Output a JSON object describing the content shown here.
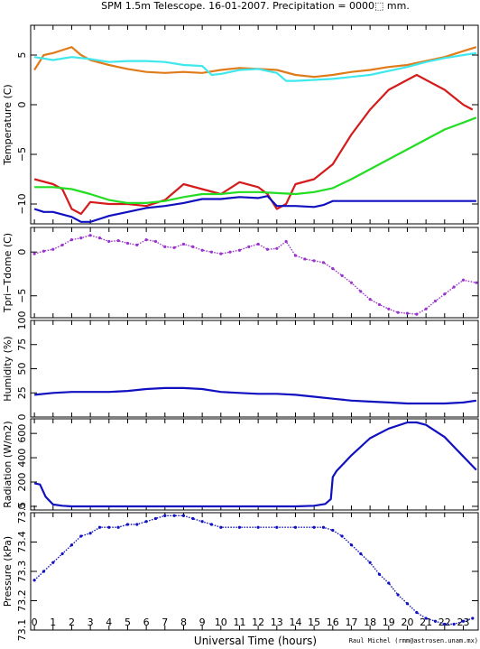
{
  "figure": {
    "title": "SPM 1.5m Telescope. 16-01-2007. Precipitation = 0000⬚ mm.",
    "xlabel": "Universal Time (hours)",
    "credit": "Raul Michel  (rmm@astrosen.unam.mx)"
  },
  "colors": {
    "orange": "#e07b1a",
    "cyan": "#3fe8ec",
    "red": "#d41c1c",
    "green": "#22dd22",
    "blue": "#1010c0",
    "purple": "#9933cc"
  },
  "chart_data": [
    {
      "type": "line",
      "panel": "temperature",
      "ylabel": "Temperature (C)",
      "ylim": [
        -12,
        8
      ],
      "xlim": [
        -0.2,
        23.8
      ],
      "x_ticks": [
        "0",
        "1",
        "2",
        "3",
        "4",
        "5",
        "6",
        "7",
        "8",
        "9",
        "10",
        "11",
        "12",
        "13",
        "14",
        "15",
        "16",
        "17",
        "18",
        "19",
        "20",
        "21",
        "22",
        "23"
      ],
      "y_ticks": [
        {
          "v": 5,
          "label": "5"
        },
        {
          "v": 0,
          "label": "0"
        },
        {
          "v": -5,
          "label": "−5"
        },
        {
          "v": -10,
          "label": "−10"
        }
      ],
      "series": [
        {
          "color": "orange",
          "x": [
            0,
            0.5,
            1,
            1.5,
            2,
            2.5,
            3,
            4,
            5,
            6,
            7,
            8,
            9,
            10,
            11,
            12,
            13,
            14,
            15,
            16,
            17,
            18,
            19,
            20,
            21,
            22,
            23,
            23.7
          ],
          "y": [
            3.5,
            5,
            5.2,
            5.5,
            5.8,
            5,
            4.5,
            4,
            3.6,
            3.3,
            3.2,
            3.3,
            3.2,
            3.5,
            3.7,
            3.6,
            3.5,
            3,
            2.8,
            3,
            3.3,
            3.5,
            3.8,
            4,
            4.4,
            4.8,
            5.4,
            5.8
          ]
        },
        {
          "color": "cyan",
          "x": [
            0,
            1,
            2,
            3,
            4,
            5,
            6,
            7,
            8,
            9,
            9.5,
            10,
            11,
            12,
            13,
            13.5,
            14,
            15,
            16,
            17,
            18,
            19,
            20,
            21,
            22,
            23,
            23.7
          ],
          "y": [
            4.8,
            4.5,
            4.8,
            4.6,
            4.3,
            4.4,
            4.4,
            4.3,
            4,
            3.9,
            3,
            3.1,
            3.5,
            3.6,
            3.2,
            2.4,
            2.4,
            2.5,
            2.6,
            2.8,
            3,
            3.4,
            3.8,
            4.3,
            4.7,
            5,
            5.2
          ]
        },
        {
          "color": "red",
          "x": [
            0,
            1,
            1.5,
            2,
            2.5,
            3,
            4,
            5,
            6,
            7,
            8,
            9,
            10,
            11,
            12,
            12.5,
            13,
            13.5,
            14,
            15,
            16,
            17,
            18,
            19,
            20,
            20.5,
            21,
            22,
            23,
            23.5
          ],
          "y": [
            -7.5,
            -8,
            -8.5,
            -10.5,
            -11,
            -9.8,
            -10,
            -10,
            -10.2,
            -9.6,
            -8,
            -8.5,
            -9,
            -7.8,
            -8.3,
            -9,
            -10.5,
            -10,
            -8,
            -7.5,
            -6,
            -3,
            -0.5,
            1.5,
            2.5,
            3,
            2.5,
            1.5,
            0,
            -0.5
          ]
        },
        {
          "color": "green",
          "x": [
            0,
            1,
            2,
            3,
            4,
            5,
            6,
            7,
            8,
            9,
            10,
            11,
            12,
            13,
            14,
            15,
            16,
            17,
            18,
            19,
            20,
            21,
            22,
            23,
            23.7
          ],
          "y": [
            -8.3,
            -8.3,
            -8.5,
            -9,
            -9.6,
            -9.9,
            -9.9,
            -9.7,
            -9.3,
            -9,
            -9,
            -8.8,
            -8.8,
            -8.9,
            -9,
            -8.8,
            -8.4,
            -7.5,
            -6.5,
            -5.5,
            -4.5,
            -3.5,
            -2.5,
            -1.8,
            -1.3
          ]
        },
        {
          "color": "blue",
          "x": [
            0,
            0.5,
            1,
            2,
            2.5,
            3,
            3.5,
            4,
            5,
            6,
            7,
            8,
            9,
            10,
            11,
            12,
            12.5,
            13,
            14,
            15,
            15.5,
            16,
            17,
            18,
            19,
            20,
            21,
            22,
            23,
            23.7
          ],
          "y": [
            -10.5,
            -10.8,
            -10.8,
            -11.3,
            -11.8,
            -11.8,
            -11.5,
            -11.2,
            -10.8,
            -10.4,
            -10.2,
            -9.9,
            -9.5,
            -9.5,
            -9.3,
            -9.4,
            -9.2,
            -10.2,
            -10.2,
            -10.3,
            -10.1,
            -9.7,
            -9.7,
            -9.7,
            -9.7,
            -9.7,
            -9.7,
            -9.7,
            -9.7,
            -9.7
          ]
        }
      ]
    },
    {
      "type": "scatter",
      "panel": "tdiff",
      "ylabel": "Tpri−Tdome (C)",
      "ylim": [
        -7.5,
        2.8
      ],
      "xlim": [
        -0.2,
        23.8
      ],
      "y_ticks": [
        {
          "v": 0,
          "label": "0"
        },
        {
          "v": -5,
          "label": "−5"
        }
      ],
      "series": [
        {
          "color": "purple",
          "x": [
            0,
            0.5,
            1,
            1.5,
            2,
            2.5,
            3,
            3.5,
            4,
            4.5,
            5,
            5.5,
            6,
            6.5,
            7,
            7.5,
            8,
            8.5,
            9,
            9.5,
            10,
            10.5,
            11,
            11.5,
            12,
            12.5,
            13,
            13.5,
            14,
            14.5,
            15,
            15.5,
            16,
            16.5,
            17,
            17.5,
            18,
            18.5,
            19,
            19.5,
            20,
            20.5,
            21,
            21.5,
            22,
            22.5,
            23,
            23.7
          ],
          "y": [
            -0.2,
            0.1,
            0.3,
            0.8,
            1.4,
            1.6,
            1.9,
            1.6,
            1.2,
            1.3,
            1,
            0.8,
            1.4,
            1.2,
            0.6,
            0.5,
            0.9,
            0.6,
            0.2,
            0,
            -0.2,
            0,
            0.2,
            0.6,
            0.9,
            0.3,
            0.4,
            1.2,
            -0.4,
            -0.8,
            -1,
            -1.2,
            -1.9,
            -2.7,
            -3.5,
            -4.5,
            -5.4,
            -6,
            -6.5,
            -6.9,
            -7,
            -7.1,
            -6.5,
            -5.6,
            -4.8,
            -4,
            -3.2,
            -3.5
          ]
        }
      ]
    },
    {
      "type": "line",
      "panel": "humidity",
      "ylabel": "Humidity (%)",
      "ylim": [
        0,
        100
      ],
      "xlim": [
        -0.2,
        23.8
      ],
      "y_ticks": [
        {
          "v": 0,
          "label": "0"
        },
        {
          "v": 25,
          "label": "25"
        },
        {
          "v": 50,
          "label": "50"
        },
        {
          "v": 75,
          "label": "75"
        },
        {
          "v": 100,
          "label": "100"
        }
      ],
      "series": [
        {
          "color": "blue",
          "x": [
            0,
            1,
            2,
            3,
            4,
            5,
            6,
            7,
            8,
            9,
            10,
            11,
            12,
            13,
            14,
            15,
            16,
            17,
            18,
            19,
            20,
            21,
            22,
            23,
            23.7
          ],
          "y": [
            23,
            25,
            26,
            26,
            26,
            27,
            29,
            30,
            30,
            29,
            26,
            25,
            24,
            24,
            23,
            21,
            19,
            17,
            16,
            15,
            14,
            14,
            14,
            15,
            17
          ]
        }
      ]
    },
    {
      "type": "line",
      "panel": "radiation",
      "ylabel": "Radiation (W/m2)",
      "ylim": [
        -30,
        720
      ],
      "xlim": [
        -0.2,
        23.8
      ],
      "y_ticks": [
        {
          "v": 0,
          "label": "0"
        },
        {
          "v": 200,
          "label": "200"
        },
        {
          "v": 400,
          "label": "400"
        },
        {
          "v": 600,
          "label": "600"
        }
      ],
      "series": [
        {
          "color": "blue",
          "x": [
            0,
            0.3,
            0.6,
            1,
            1.5,
            2,
            4,
            6,
            8,
            10,
            12,
            14,
            15,
            15.6,
            15.9,
            16,
            16.2,
            17,
            18,
            19,
            20,
            20.5,
            21,
            22,
            23,
            23.7
          ],
          "y": [
            190,
            180,
            80,
            15,
            5,
            0,
            0,
            0,
            0,
            0,
            0,
            0,
            5,
            20,
            60,
            240,
            290,
            420,
            560,
            640,
            690,
            690,
            670,
            570,
            410,
            300
          ]
        }
      ]
    },
    {
      "type": "scatter",
      "panel": "pressure",
      "ylabel": "Pressure (kPa)",
      "ylim": [
        73.1,
        73.5
      ],
      "xlim": [
        -0.2,
        23.8
      ],
      "y_ticks": [
        {
          "v": 73.1,
          "label": "73.1"
        },
        {
          "v": 73.2,
          "label": "73.2"
        },
        {
          "v": 73.3,
          "label": "73.3"
        },
        {
          "v": 73.4,
          "label": "73.4"
        },
        {
          "v": 73.5,
          "label": "73.5"
        }
      ],
      "series": [
        {
          "color": "blue",
          "x": [
            0,
            0.5,
            1,
            1.5,
            2,
            2.5,
            3,
            3.5,
            4,
            4.5,
            5,
            5.5,
            6,
            6.5,
            7,
            7.5,
            8,
            8.5,
            9,
            9.5,
            10,
            11,
            12,
            13,
            14,
            15,
            15.5,
            16,
            16.5,
            17,
            17.5,
            18,
            18.5,
            19,
            19.5,
            20,
            20.5,
            21,
            21.5,
            22,
            22.5,
            23,
            23.5
          ],
          "y": [
            73.27,
            73.3,
            73.33,
            73.36,
            73.39,
            73.42,
            73.43,
            73.45,
            73.45,
            73.45,
            73.46,
            73.46,
            73.47,
            73.48,
            73.49,
            73.49,
            73.49,
            73.48,
            73.47,
            73.46,
            73.45,
            73.45,
            73.45,
            73.45,
            73.45,
            73.45,
            73.45,
            73.44,
            73.42,
            73.39,
            73.36,
            73.33,
            73.29,
            73.26,
            73.22,
            73.19,
            73.16,
            73.14,
            73.13,
            73.12,
            73.12,
            73.13,
            73.14
          ]
        }
      ]
    }
  ]
}
